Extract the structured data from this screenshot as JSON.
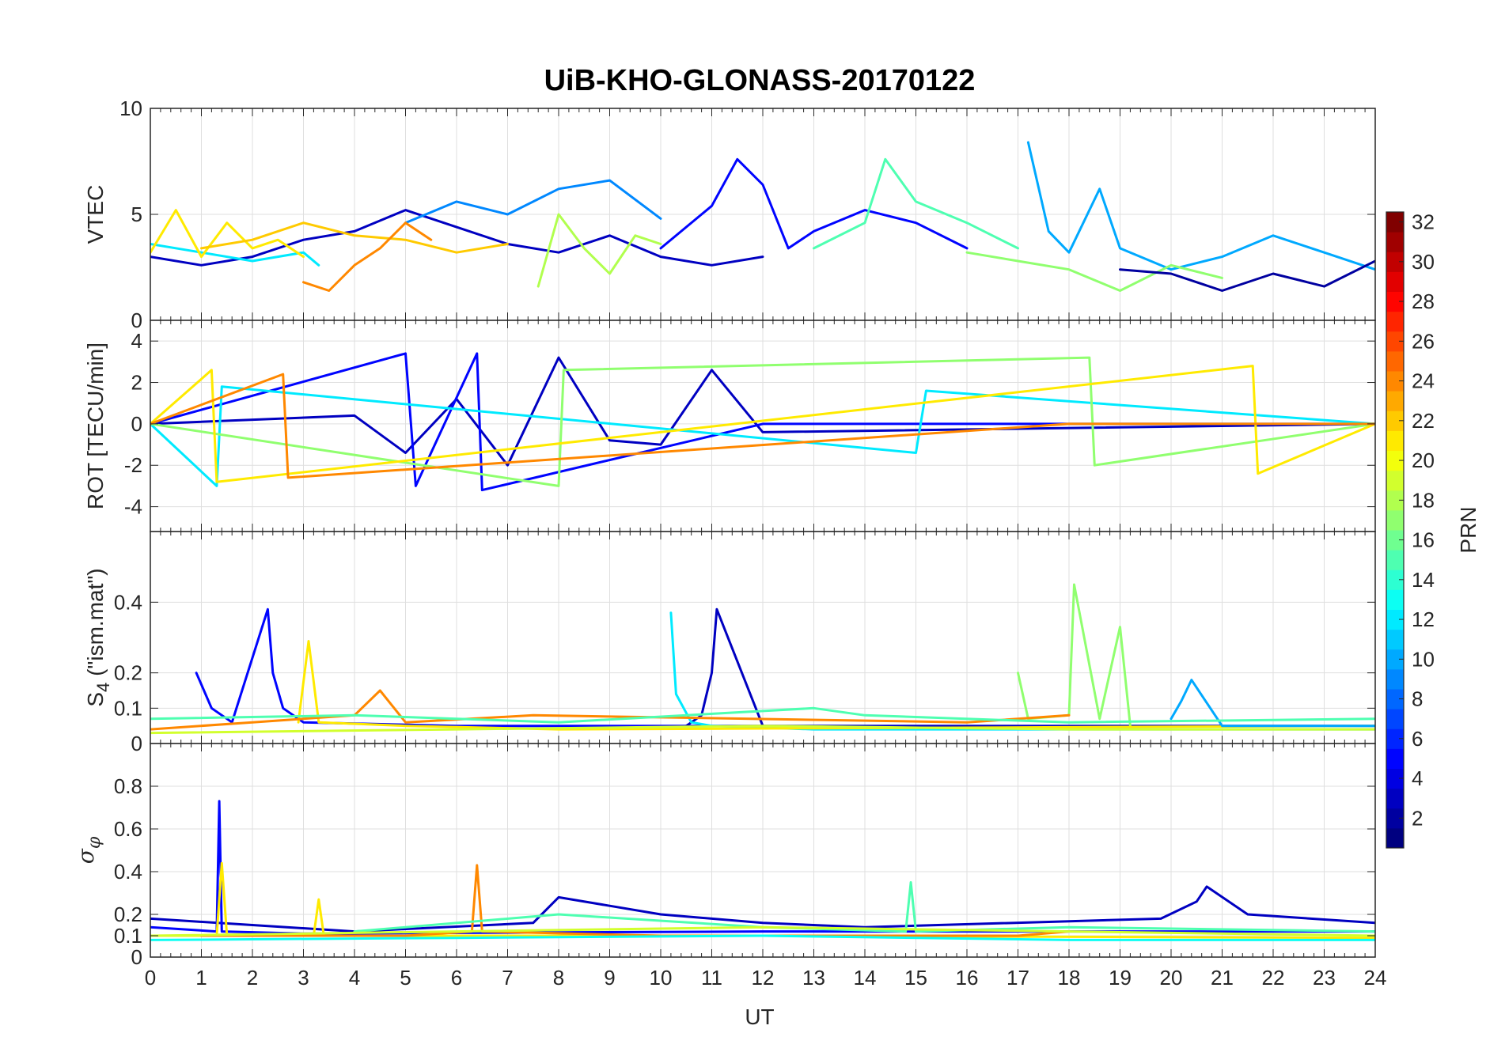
{
  "chart_data": {
    "type": "line",
    "title": "UiB-KHO-GLONASS-20170122",
    "xlabel": "UT",
    "xlim": [
      0,
      24
    ],
    "xticks": [
      "0",
      "1",
      "2",
      "3",
      "4",
      "5",
      "6",
      "7",
      "8",
      "9",
      "10",
      "11",
      "12",
      "13",
      "14",
      "15",
      "16",
      "17",
      "18",
      "19",
      "20",
      "21",
      "22",
      "23",
      "24"
    ],
    "grid": true,
    "panels": [
      {
        "id": "vtec",
        "ylabel": "VTEC",
        "ylim": [
          0,
          10
        ],
        "yticks": [
          {
            "v": 0,
            "t": "0"
          },
          {
            "v": 5,
            "t": "5"
          },
          {
            "v": 10,
            "t": "10"
          }
        ],
        "series": [
          {
            "prn": 3,
            "x": [
              0,
              1,
              2,
              3,
              4,
              5,
              6,
              7,
              8,
              9,
              10,
              11,
              12
            ],
            "y": [
              3.0,
              2.6,
              3.0,
              3.8,
              4.2,
              5.2,
              4.4,
              3.6,
              3.2,
              4.0,
              3.0,
              2.6,
              3.0
            ]
          },
          {
            "prn": 5,
            "x": [
              10,
              11,
              11.5,
              12,
              12.5,
              13,
              14,
              15,
              16
            ],
            "y": [
              3.4,
              5.4,
              7.6,
              6.4,
              3.4,
              4.2,
              5.2,
              4.6,
              3.4
            ]
          },
          {
            "prn": 9,
            "x": [
              5,
              6,
              7,
              8,
              9,
              10
            ],
            "y": [
              4.6,
              5.6,
              5.0,
              6.2,
              6.6,
              4.8
            ]
          },
          {
            "prn": 10,
            "x": [
              17.2,
              17.6,
              18,
              18.6,
              19,
              20,
              21,
              22,
              23,
              24
            ],
            "y": [
              8.4,
              4.2,
              3.2,
              6.2,
              3.4,
              2.4,
              3.0,
              4.0,
              3.2,
              2.4
            ]
          },
          {
            "prn": 12,
            "x": [
              0,
              1,
              2,
              3,
              3.3
            ],
            "y": [
              3.6,
              3.2,
              2.8,
              3.2,
              2.6
            ]
          },
          {
            "prn": 15,
            "x": [
              13,
              14,
              14.4,
              15,
              16,
              17
            ],
            "y": [
              3.4,
              4.6,
              7.6,
              5.6,
              4.6,
              3.4
            ]
          },
          {
            "prn": 17,
            "x": [
              16,
              17,
              18,
              19,
              20,
              21
            ],
            "y": [
              3.2,
              2.8,
              2.4,
              1.4,
              2.6,
              2.0
            ]
          },
          {
            "prn": 18,
            "x": [
              7.6,
              8,
              8.5,
              9,
              9.5,
              10
            ],
            "y": [
              1.6,
              5.0,
              3.4,
              2.2,
              4.0,
              3.6
            ]
          },
          {
            "prn": 21,
            "x": [
              0,
              0.5,
              1,
              1.5,
              2,
              2.5,
              3
            ],
            "y": [
              3.2,
              5.2,
              3.0,
              4.6,
              3.4,
              3.8,
              3.0
            ]
          },
          {
            "prn": 22,
            "x": [
              1,
              2,
              3,
              4,
              5,
              6,
              7
            ],
            "y": [
              3.4,
              3.8,
              4.6,
              4.0,
              3.8,
              3.2,
              3.6
            ]
          },
          {
            "prn": 24,
            "x": [
              3,
              3.5,
              4,
              4.5,
              5,
              5.5
            ],
            "y": [
              1.8,
              1.4,
              2.6,
              3.4,
              4.6,
              3.8
            ]
          },
          {
            "prn": 2,
            "x": [
              19,
              20,
              21,
              22,
              23,
              24
            ],
            "y": [
              2.4,
              2.2,
              1.4,
              2.2,
              1.6,
              2.8
            ]
          }
        ]
      },
      {
        "id": "rot",
        "ylabel": "ROT [TECU/min]",
        "ylim": [
          -5.2,
          5
        ],
        "yticks": [
          {
            "v": -4,
            "t": "-4"
          },
          {
            "v": -2,
            "t": "-2"
          },
          {
            "v": 0,
            "t": "0"
          },
          {
            "v": 2,
            "t": "2"
          },
          {
            "v": 4,
            "t": "4"
          }
        ],
        "series": [
          {
            "prn": 3,
            "x": [
              0,
              4,
              5,
              6,
              7,
              8,
              9,
              10,
              11,
              12,
              24
            ],
            "y": [
              0,
              0.4,
              -1.4,
              1.2,
              -2.0,
              3.2,
              -0.8,
              -1.0,
              2.6,
              -0.4,
              0
            ]
          },
          {
            "prn": 5,
            "x": [
              0,
              5,
              5.2,
              6.4,
              6.5,
              12,
              24
            ],
            "y": [
              0,
              3.4,
              -3.0,
              3.4,
              -3.2,
              0,
              0
            ]
          },
          {
            "prn": 12,
            "x": [
              0,
              1.3,
              1.4,
              15,
              15.2,
              24
            ],
            "y": [
              0,
              -3.0,
              1.8,
              -1.4,
              1.6,
              0
            ]
          },
          {
            "prn": 17,
            "x": [
              0,
              8,
              8.1,
              18.4,
              18.5,
              24
            ],
            "y": [
              0,
              -3.0,
              2.6,
              3.2,
              -2.0,
              0
            ]
          },
          {
            "prn": 21,
            "x": [
              0,
              1.2,
              1.3,
              21.6,
              21.7,
              24
            ],
            "y": [
              0,
              2.6,
              -2.8,
              2.8,
              -2.4,
              0
            ]
          },
          {
            "prn": 24,
            "x": [
              0,
              2.6,
              2.7,
              18,
              24
            ],
            "y": [
              0,
              2.4,
              -2.6,
              0,
              0
            ]
          }
        ]
      },
      {
        "id": "s4",
        "ylabel": "S4 (\"ism.mat\")",
        "ylim": [
          0,
          0.6
        ],
        "yticks": [
          {
            "v": 0,
            "t": "0"
          },
          {
            "v": 0.1,
            "t": "0.1"
          },
          {
            "v": 0.2,
            "t": "0.2"
          },
          {
            "v": 0.4,
            "t": "0.4"
          }
        ],
        "series": [
          {
            "prn": 5,
            "x": [
              0.9,
              1.2,
              1.6,
              2.3,
              2.4,
              2.6,
              3.0,
              6,
              10,
              12
            ],
            "y": [
              0.2,
              0.1,
              0.06,
              0.38,
              0.2,
              0.1,
              0.06,
              0.05,
              0.05,
              0.05
            ]
          },
          {
            "prn": 3,
            "x": [
              10.5,
              10.8,
              11.0,
              11.1,
              12,
              24
            ],
            "y": [
              0.05,
              0.08,
              0.2,
              0.38,
              0.05,
              0.05
            ]
          },
          {
            "prn": 12,
            "x": [
              10.2,
              10.3,
              10.6,
              11,
              13,
              16,
              24
            ],
            "y": [
              0.37,
              0.14,
              0.06,
              0.05,
              0.04,
              0.04,
              0.04
            ]
          },
          {
            "prn": 17,
            "x": [
              17.0,
              17.2,
              18.0,
              18.1,
              18.6,
              19.0,
              19.2
            ],
            "y": [
              0.2,
              0.07,
              0.08,
              0.45,
              0.07,
              0.33,
              0.05
            ]
          },
          {
            "prn": 21,
            "x": [
              2.9,
              3.1,
              3.3,
              5,
              8,
              24
            ],
            "y": [
              0.06,
              0.29,
              0.06,
              0.05,
              0.04,
              0.05
            ]
          },
          {
            "prn": 24,
            "x": [
              0,
              2,
              4,
              4.5,
              5,
              7.5,
              16,
              18
            ],
            "y": [
              0.04,
              0.06,
              0.08,
              0.15,
              0.06,
              0.08,
              0.06,
              0.08
            ]
          },
          {
            "prn": 10,
            "x": [
              20,
              20.2,
              20.4,
              21,
              24
            ],
            "y": [
              0.07,
              0.12,
              0.18,
              0.05,
              0.05
            ]
          },
          {
            "prn": 15,
            "x": [
              0,
              4,
              8,
              13,
              14,
              18,
              24
            ],
            "y": [
              0.07,
              0.08,
              0.06,
              0.1,
              0.08,
              0.06,
              0.07
            ]
          },
          {
            "prn": 19,
            "x": [
              0,
              6,
              12,
              18,
              24
            ],
            "y": [
              0.03,
              0.04,
              0.05,
              0.04,
              0.04
            ]
          }
        ]
      },
      {
        "id": "sigma",
        "ylabel": "σφ",
        "ylim": [
          0,
          1
        ],
        "yticks": [
          {
            "v": 0,
            "t": "0"
          },
          {
            "v": 0.1,
            "t": "0.1"
          },
          {
            "v": 0.2,
            "t": "0.2"
          },
          {
            "v": 0.4,
            "t": "0.4"
          },
          {
            "v": 0.6,
            "t": "0.6"
          },
          {
            "v": 0.8,
            "t": "0.8"
          }
        ],
        "series": [
          {
            "prn": 3,
            "x": [
              0,
              2,
              4,
              7.5,
              8,
              9,
              10,
              12,
              14,
              19.8,
              20.5,
              20.7,
              21.5,
              24
            ],
            "y": [
              0.18,
              0.15,
              0.12,
              0.16,
              0.28,
              0.24,
              0.2,
              0.16,
              0.14,
              0.18,
              0.26,
              0.33,
              0.2,
              0.16
            ]
          },
          {
            "prn": 5,
            "x": [
              0,
              1.3,
              1.35,
              1.4,
              3,
              12,
              24
            ],
            "y": [
              0.14,
              0.12,
              0.73,
              0.12,
              0.11,
              0.12,
              0.12
            ]
          },
          {
            "prn": 21,
            "x": [
              0,
              1.3,
              1.4,
              1.5,
              3.2,
              3.3,
              3.4,
              12,
              24
            ],
            "y": [
              0.1,
              0.1,
              0.44,
              0.1,
              0.1,
              0.27,
              0.1,
              0.1,
              0.09
            ]
          },
          {
            "prn": 24,
            "x": [
              1,
              5,
              6.3,
              6.4,
              6.5,
              10,
              17,
              18
            ],
            "y": [
              0.1,
              0.1,
              0.12,
              0.43,
              0.12,
              0.1,
              0.1,
              0.12
            ]
          },
          {
            "prn": 15,
            "x": [
              4,
              8,
              12,
              14.8,
              14.9,
              15,
              18,
              24
            ],
            "y": [
              0.12,
              0.2,
              0.14,
              0.12,
              0.35,
              0.12,
              0.14,
              0.12
            ]
          },
          {
            "prn": 13,
            "x": [
              0,
              6,
              12,
              18,
              24
            ],
            "y": [
              0.08,
              0.09,
              0.1,
              0.08,
              0.08
            ]
          },
          {
            "prn": 19,
            "x": [
              0,
              6,
              12,
              18,
              24
            ],
            "y": [
              0.1,
              0.12,
              0.14,
              0.12,
              0.1
            ]
          }
        ]
      }
    ],
    "colorbar": {
      "label": "PRN",
      "range": [
        1,
        32
      ],
      "ticks": [
        "2",
        "4",
        "6",
        "8",
        "10",
        "12",
        "14",
        "16",
        "18",
        "20",
        "22",
        "24",
        "26",
        "28",
        "30",
        "32"
      ],
      "colormap": "jet"
    }
  }
}
